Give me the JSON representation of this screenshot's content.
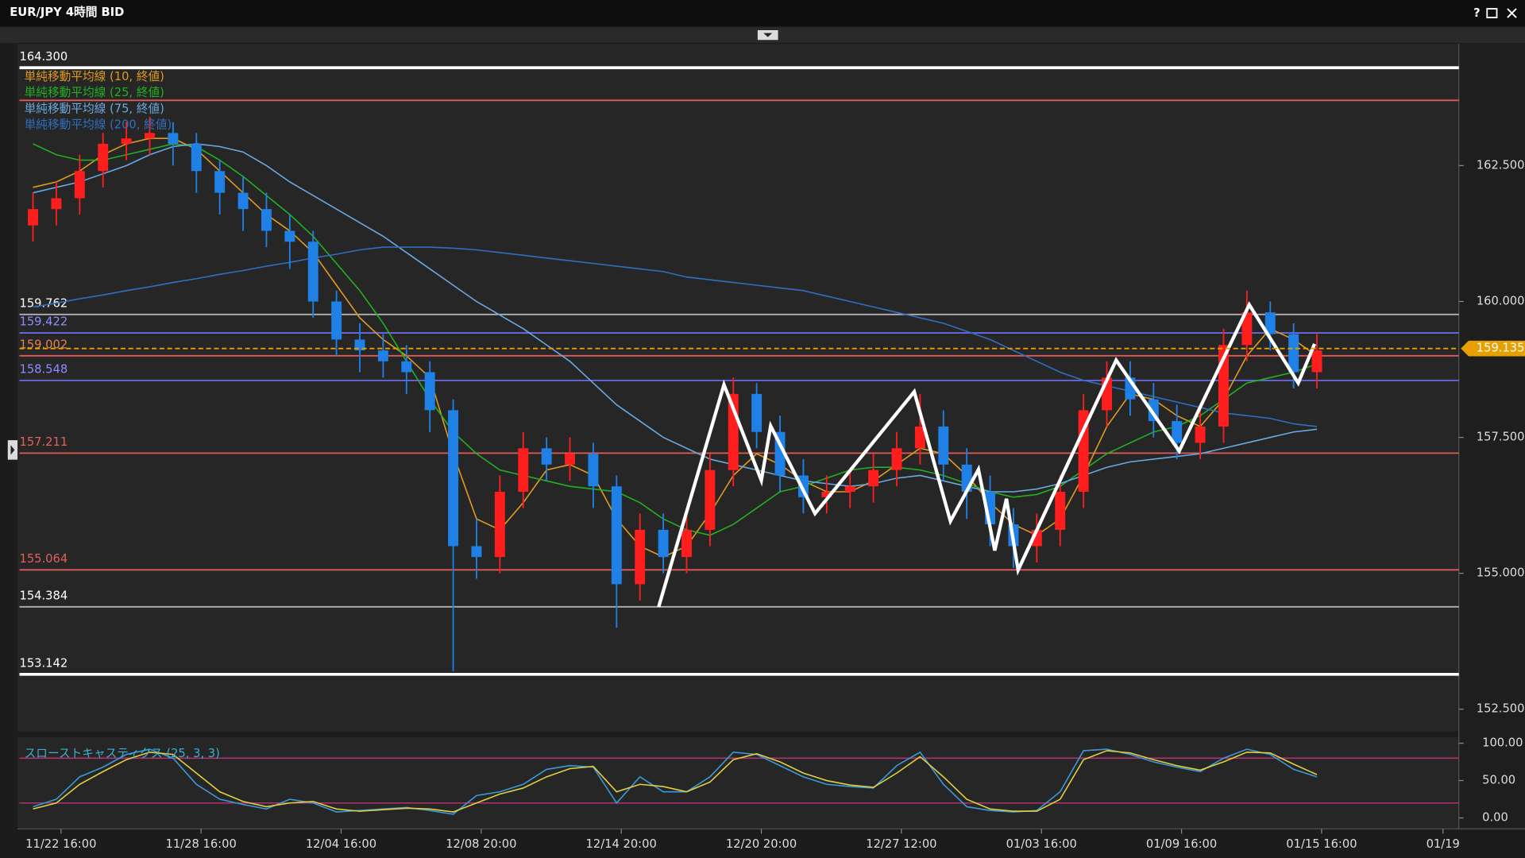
{
  "window": {
    "help": "?"
  },
  "chart_data": {
    "type": "candlestick",
    "title": "EUR/JPY 4時間 BID",
    "up_color": "#ff1e1e",
    "down_color": "#1f80e6",
    "open": [
      161.4,
      161.7,
      161.9,
      162.4,
      162.9,
      163.0,
      163.1,
      162.9,
      162.4,
      162.0,
      161.7,
      161.3,
      161.1,
      160.0,
      159.3,
      159.1,
      158.9,
      158.7,
      158.0,
      155.5,
      155.3,
      156.5,
      157.3,
      157.0,
      157.2,
      156.6,
      154.8,
      155.8,
      155.3,
      155.8,
      156.9,
      158.3,
      157.6,
      156.8,
      156.4,
      156.5,
      156.6,
      156.9,
      157.3,
      157.7,
      157.0,
      156.5,
      155.9,
      155.5,
      155.8,
      156.5,
      158.0,
      158.6,
      158.2,
      157.8,
      157.4,
      157.7,
      159.2,
      159.8,
      159.4,
      158.7
    ],
    "high": [
      162.0,
      162.2,
      162.7,
      163.1,
      163.3,
      163.4,
      163.3,
      163.1,
      162.6,
      162.3,
      162.0,
      161.6,
      161.3,
      160.2,
      159.6,
      159.4,
      159.2,
      158.9,
      158.2,
      156.0,
      156.8,
      157.6,
      157.5,
      157.5,
      157.4,
      156.8,
      156.1,
      156.1,
      156.1,
      157.2,
      158.6,
      158.5,
      157.9,
      157.1,
      156.8,
      156.9,
      157.2,
      157.6,
      158.3,
      158.0,
      157.3,
      156.8,
      156.2,
      156.1,
      156.8,
      158.3,
      158.9,
      158.9,
      158.5,
      158.1,
      158.0,
      159.5,
      160.2,
      160.0,
      159.6,
      159.4
    ],
    "low": [
      161.1,
      161.4,
      161.6,
      162.1,
      162.6,
      162.7,
      162.5,
      162.0,
      161.6,
      161.3,
      161.0,
      160.6,
      159.7,
      159.0,
      158.7,
      158.6,
      158.3,
      157.6,
      153.2,
      154.9,
      155.0,
      156.2,
      156.7,
      156.7,
      156.2,
      154.0,
      154.5,
      155.0,
      155.0,
      155.5,
      156.6,
      157.3,
      156.5,
      156.1,
      156.1,
      156.2,
      156.3,
      156.6,
      157.0,
      156.7,
      156.0,
      155.5,
      155.1,
      155.2,
      155.5,
      156.2,
      157.7,
      157.9,
      157.5,
      157.1,
      157.1,
      157.4,
      158.9,
      159.1,
      158.4,
      158.4
    ],
    "close": [
      161.7,
      161.9,
      162.4,
      162.9,
      163.0,
      163.1,
      162.9,
      162.4,
      162.0,
      161.7,
      161.3,
      161.1,
      160.0,
      159.3,
      159.1,
      158.9,
      158.7,
      158.0,
      155.5,
      155.3,
      156.5,
      157.3,
      157.0,
      157.2,
      156.6,
      154.8,
      155.8,
      155.3,
      155.8,
      156.9,
      158.3,
      157.6,
      156.8,
      156.4,
      156.5,
      156.6,
      156.9,
      157.3,
      157.7,
      157.0,
      156.5,
      155.9,
      155.5,
      155.8,
      156.5,
      158.0,
      158.6,
      158.2,
      157.8,
      157.4,
      157.7,
      159.2,
      159.8,
      159.4,
      158.7,
      159.1
    ],
    "series": [
      {
        "name": "単純移動平均線 (10, 終値)",
        "color": "#e09a20",
        "values": [
          162.1,
          162.2,
          162.4,
          162.7,
          162.9,
          163.0,
          163.0,
          162.8,
          162.4,
          162.0,
          161.6,
          161.3,
          160.9,
          160.3,
          159.7,
          159.3,
          159.0,
          158.6,
          157.2,
          156.0,
          155.8,
          156.3,
          156.9,
          157.0,
          156.8,
          156.0,
          155.5,
          155.3,
          155.5,
          156.1,
          156.8,
          157.2,
          157.0,
          156.7,
          156.5,
          156.5,
          156.7,
          157.0,
          157.3,
          157.2,
          156.8,
          156.3,
          155.9,
          155.7,
          156.0,
          156.8,
          157.7,
          158.3,
          158.2,
          157.9,
          157.7,
          158.2,
          159.0,
          159.5,
          159.3,
          159.0
        ]
      },
      {
        "name": "単純移動平均線 (25, 終値)",
        "color": "#22b022",
        "values": [
          162.9,
          162.7,
          162.6,
          162.6,
          162.7,
          162.8,
          162.9,
          162.85,
          162.6,
          162.3,
          161.95,
          161.6,
          161.2,
          160.7,
          160.2,
          159.6,
          158.9,
          158.2,
          157.6,
          157.2,
          156.9,
          156.8,
          156.7,
          156.6,
          156.55,
          156.5,
          156.3,
          156.0,
          155.8,
          155.7,
          155.9,
          156.2,
          156.5,
          156.6,
          156.75,
          156.9,
          156.95,
          156.95,
          156.9,
          156.8,
          156.65,
          156.5,
          156.4,
          156.45,
          156.6,
          156.9,
          157.2,
          157.4,
          157.6,
          157.7,
          157.9,
          158.2,
          158.5,
          158.6,
          158.7,
          158.85
        ]
      },
      {
        "name": "単純移動平均線 (75, 終値)",
        "color": "#6aa8e0",
        "values": [
          162.0,
          162.1,
          162.2,
          162.35,
          162.5,
          162.7,
          162.85,
          162.9,
          162.85,
          162.75,
          162.5,
          162.2,
          161.95,
          161.7,
          161.45,
          161.2,
          160.9,
          160.6,
          160.3,
          160.0,
          159.75,
          159.5,
          159.2,
          158.9,
          158.5,
          158.1,
          157.8,
          157.5,
          157.3,
          157.1,
          157.0,
          156.9,
          156.8,
          156.7,
          156.65,
          156.6,
          156.65,
          156.75,
          156.8,
          156.7,
          156.6,
          156.5,
          156.5,
          156.55,
          156.65,
          156.8,
          156.95,
          157.05,
          157.1,
          157.15,
          157.2,
          157.3,
          157.4,
          157.5,
          157.6,
          157.65
        ]
      },
      {
        "name": "単純移動平均線 (200, 終値)",
        "color": "#2f6fc0",
        "values": [
          159.9,
          159.97,
          160.05,
          160.12,
          160.2,
          160.27,
          160.35,
          160.42,
          160.5,
          160.57,
          160.65,
          160.72,
          160.8,
          160.87,
          160.95,
          161.0,
          161.0,
          161.0,
          160.98,
          160.95,
          160.9,
          160.85,
          160.8,
          160.75,
          160.7,
          160.65,
          160.6,
          160.55,
          160.45,
          160.4,
          160.35,
          160.3,
          160.25,
          160.2,
          160.1,
          160.0,
          159.9,
          159.8,
          159.7,
          159.6,
          159.45,
          159.3,
          159.1,
          158.9,
          158.7,
          158.55,
          158.45,
          158.35,
          158.25,
          158.15,
          158.05,
          157.95,
          157.9,
          157.85,
          157.75,
          157.7
        ]
      }
    ],
    "legend": "upper left",
    "levels": [
      {
        "value": 164.3,
        "label": "164.300",
        "color": "#ffffff",
        "label_color": "#ffffff",
        "emphasis": true
      },
      {
        "value": 163.7,
        "label": null,
        "color": "#e05a5a",
        "label_color": "#e06060",
        "emphasis": false
      },
      {
        "value": 159.762,
        "label": "159.762",
        "color": "#b0b0b0",
        "label_color": "#ffffff",
        "emphasis": false
      },
      {
        "value": 159.422,
        "label": "159.422",
        "color": "#6a6ae0",
        "label_color": "#8c8cff",
        "emphasis": false
      },
      {
        "value": 159.002,
        "label": "159.002",
        "color": "#e05a5a",
        "label_color": "#e8804a",
        "emphasis": false
      },
      {
        "value": 158.548,
        "label": "158.548",
        "color": "#6a6ae0",
        "label_color": "#8c8cff",
        "emphasis": false
      },
      {
        "value": 157.211,
        "label": "157.211",
        "color": "#e05a5a",
        "label_color": "#e06060",
        "emphasis": false
      },
      {
        "value": 155.064,
        "label": "155.064",
        "color": "#e05a5a",
        "label_color": "#e06060",
        "emphasis": false
      },
      {
        "value": 154.384,
        "label": "154.384",
        "color": "#b0b0b0",
        "label_color": "#ffffff",
        "emphasis": false
      },
      {
        "value": 153.142,
        "label": "153.142",
        "color": "#ffffff",
        "label_color": "#ffffff",
        "emphasis": true
      }
    ],
    "last": {
      "value": 159.135,
      "label": "159.135",
      "color": "#e8a000"
    },
    "zigzag": {
      "color": "#ffffff",
      "x": [
        26.8,
        29.6,
        31.2,
        31.6,
        33.5,
        37.75,
        39.3,
        40.5,
        41.2,
        41.7,
        42.2,
        46.4,
        49.1,
        52.1,
        54.2,
        54.9
      ],
      "y": [
        154.38,
        158.47,
        156.71,
        157.71,
        156.1,
        158.34,
        155.96,
        156.91,
        155.42,
        156.37,
        155.06,
        158.92,
        157.25,
        159.94,
        158.5,
        159.22
      ]
    },
    "xlim": [
      -0.58,
      61.08
    ],
    "xticks": [
      {
        "value": 1.2,
        "label": "11/22 16:00"
      },
      {
        "value": 7.2,
        "label": "11/28 16:00"
      },
      {
        "value": 13.2,
        "label": "12/04 16:00"
      },
      {
        "value": 19.2,
        "label": "12/08 20:00"
      },
      {
        "value": 25.2,
        "label": "12/14 20:00"
      },
      {
        "value": 31.2,
        "label": "12/20 20:00"
      },
      {
        "value": 37.2,
        "label": "12/27 12:00"
      },
      {
        "value": 43.2,
        "label": "01/03 16:00"
      },
      {
        "value": 49.2,
        "label": "01/09 16:00"
      },
      {
        "value": 55.2,
        "label": "01/15 16:00"
      },
      {
        "value": 60.4,
        "label": "01/19"
      }
    ],
    "ylim": [
      152.11,
      164.74
    ],
    "yticks": [
      {
        "value": 162.5,
        "label": "162.500"
      },
      {
        "value": 160,
        "label": "160.000"
      },
      {
        "value": 157.5,
        "label": "157.500"
      },
      {
        "value": 155,
        "label": "155.000"
      },
      {
        "value": 152.5,
        "label": "152.500"
      }
    ],
    "stochastic": {
      "title": "スローストキャスティクス (25, 3, 3)",
      "ylim": [
        -8,
        108
      ],
      "yticks": [
        {
          "value": 100,
          "label": "100.00"
        },
        {
          "value": 50,
          "label": "50.00"
        },
        {
          "value": 0,
          "label": "0.00"
        }
      ],
      "bands": [
        80,
        20
      ],
      "band_color": "#b03070",
      "series": [
        {
          "color": "#3a9ad9",
          "values": [
            15,
            25,
            55,
            68,
            85,
            92,
            80,
            45,
            25,
            18,
            12,
            25,
            20,
            8,
            10,
            12,
            14,
            10,
            5,
            30,
            35,
            45,
            65,
            70,
            68,
            20,
            55,
            35,
            35,
            55,
            88,
            85,
            70,
            55,
            45,
            42,
            40,
            70,
            88,
            45,
            15,
            10,
            8,
            10,
            35,
            90,
            92,
            85,
            75,
            68,
            62,
            80,
            92,
            85,
            65,
            55
          ]
        },
        {
          "color": "#e0d040",
          "values": [
            12,
            20,
            45,
            62,
            78,
            88,
            85,
            60,
            35,
            22,
            15,
            20,
            22,
            12,
            9,
            11,
            13,
            12,
            8,
            20,
            32,
            40,
            55,
            66,
            69,
            35,
            45,
            42,
            35,
            48,
            78,
            86,
            75,
            60,
            50,
            44,
            41,
            60,
            82,
            55,
            25,
            12,
            9,
            9,
            25,
            78,
            90,
            87,
            78,
            70,
            64,
            75,
            88,
            87,
            72,
            58
          ]
        }
      ]
    }
  }
}
